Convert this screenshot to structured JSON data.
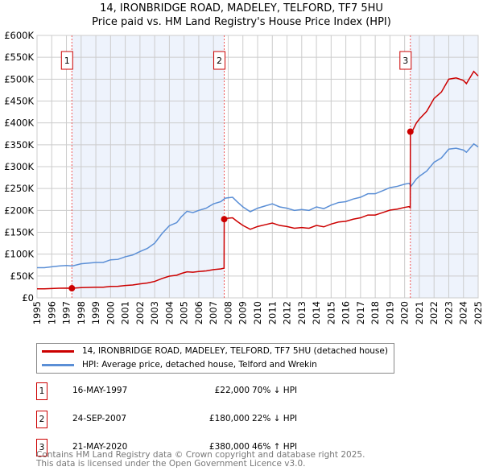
{
  "chart_data": {
    "type": "line",
    "title": "14, IRONBRIDGE ROAD, MADELEY, TELFORD, TF7 5HU",
    "subtitle": "Price paid vs. HM Land Registry's House Price Index (HPI)",
    "xlim": [
      1995,
      2025
    ],
    "ylim": [
      0,
      600000
    ],
    "x_ticks": [
      "1995",
      "1996",
      "1997",
      "1998",
      "1999",
      "2000",
      "2001",
      "2002",
      "2003",
      "2004",
      "2005",
      "2006",
      "2007",
      "2008",
      "2009",
      "2010",
      "2011",
      "2012",
      "2013",
      "2014",
      "2015",
      "2016",
      "2017",
      "2018",
      "2019",
      "2020",
      "2021",
      "2022",
      "2023",
      "2024",
      "2025"
    ],
    "y_ticks": [
      {
        "v": 0,
        "label": "£0"
      },
      {
        "v": 50000,
        "label": "£50K"
      },
      {
        "v": 100000,
        "label": "£100K"
      },
      {
        "v": 150000,
        "label": "£150K"
      },
      {
        "v": 200000,
        "label": "£200K"
      },
      {
        "v": 250000,
        "label": "£250K"
      },
      {
        "v": 300000,
        "label": "£300K"
      },
      {
        "v": 350000,
        "label": "£350K"
      },
      {
        "v": 400000,
        "label": "£400K"
      },
      {
        "v": 450000,
        "label": "£450K"
      },
      {
        "v": 500000,
        "label": "£500K"
      },
      {
        "v": 550000,
        "label": "£550K"
      },
      {
        "v": 600000,
        "label": "£600K"
      }
    ],
    "grid": true,
    "hpi_series": {
      "name": "HPI: Average price, detached house, Telford and Wrekin",
      "color": "#5b8fd6",
      "x": [
        1995,
        1995.5,
        1996,
        1996.5,
        1997,
        1997.4,
        1998,
        1999,
        1999.5,
        2000,
        2000.5,
        2001,
        2001.5,
        2002,
        2002.5,
        2003,
        2003.5,
        2004,
        2004.5,
        2004.8,
        2005.2,
        2005.6,
        2006,
        2006.5,
        2007,
        2007.5,
        2007.8,
        2008.3,
        2008.6,
        2009,
        2009.5,
        2010,
        2010.5,
        2011,
        2011.5,
        2012,
        2012.5,
        2013,
        2013.5,
        2014,
        2014.5,
        2015,
        2015.5,
        2016,
        2016.5,
        2017,
        2017.5,
        2018,
        2018.5,
        2019,
        2019.5,
        2020,
        2020.3,
        2020.45,
        2020.8,
        2021,
        2021.5,
        2022,
        2022.5,
        2023,
        2023.5,
        2024,
        2024.2,
        2024.7,
        2025
      ],
      "y": [
        69000,
        69000,
        71000,
        73000,
        74000,
        73000,
        78000,
        81000,
        81000,
        87000,
        88000,
        94000,
        98000,
        106000,
        113000,
        125000,
        147000,
        165000,
        172000,
        185000,
        198000,
        195000,
        200000,
        205000,
        215000,
        220000,
        228000,
        230000,
        220000,
        208000,
        197000,
        205000,
        210000,
        215000,
        208000,
        205000,
        200000,
        202000,
        200000,
        208000,
        204000,
        212000,
        218000,
        220000,
        226000,
        230000,
        238000,
        238000,
        245000,
        252000,
        255000,
        260000,
        262000,
        256000,
        272000,
        278000,
        290000,
        310000,
        320000,
        340000,
        342000,
        338000,
        333000,
        352000,
        345000
      ]
    },
    "price_series": {
      "name": "14, IRONBRIDGE ROAD, MADELEY, TELFORD, TF7 5HU (detached house)",
      "color": "#cc0000"
    },
    "sales": [
      {
        "n": "1",
        "x": 1997.37,
        "date": "16-MAY-1997",
        "price": 22000,
        "price_label": "£22,000",
        "hpi": "70% ↓ HPI"
      },
      {
        "n": "2",
        "x": 2007.73,
        "date": "24-SEP-2007",
        "price": 180000,
        "price_label": "£180,000",
        "hpi": "22% ↓ HPI"
      },
      {
        "n": "3",
        "x": 2020.39,
        "date": "21-MAY-2020",
        "price": 380000,
        "price_label": "£380,000",
        "hpi": "46% ↑ HPI"
      }
    ]
  },
  "legend": {
    "price": "14, IRONBRIDGE ROAD, MADELEY, TELFORD, TF7 5HU (detached house)",
    "hpi": "HPI: Average price, detached house, Telford and Wrekin"
  },
  "footer": {
    "line1": "Contains HM Land Registry data © Crown copyright and database right 2025.",
    "line2": "This data is licensed under the Open Government Licence v3.0."
  }
}
